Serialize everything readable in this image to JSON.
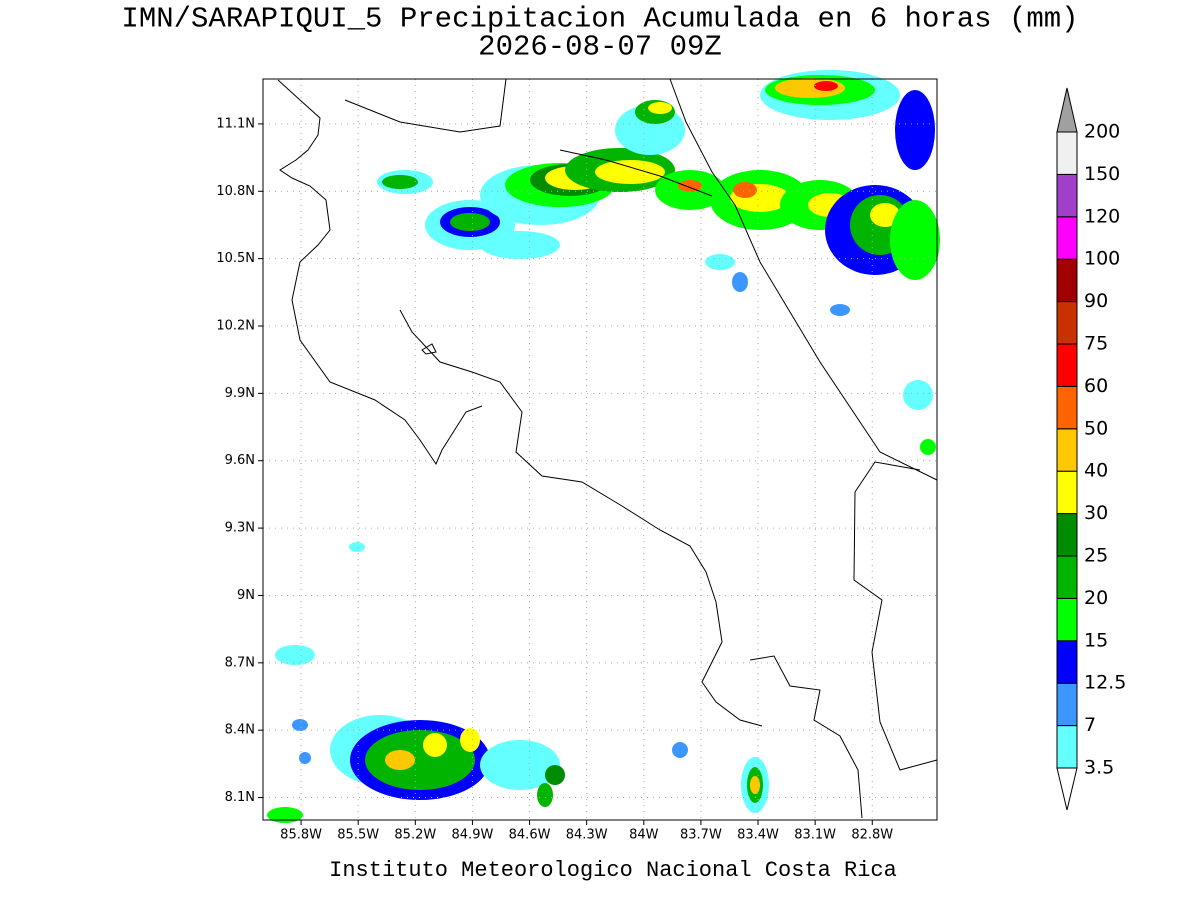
{
  "title": "IMN/SARAPIQUI_5 Precipitacion Acumulada en 6 horas (mm)",
  "subtitle": "2026-08-07 09Z",
  "footer": "Instituto Meteorologico Nacional Costa Rica",
  "map": {
    "xlim": [
      -86.0,
      -82.46
    ],
    "ylim": [
      8.0,
      11.3
    ],
    "xticks": [
      {
        "value": -85.8,
        "label": "85.8W"
      },
      {
        "value": -85.5,
        "label": "85.5W"
      },
      {
        "value": -85.2,
        "label": "85.2W"
      },
      {
        "value": -84.9,
        "label": "84.9W"
      },
      {
        "value": -84.6,
        "label": "84.6W"
      },
      {
        "value": -84.3,
        "label": "84.3W"
      },
      {
        "value": -84.0,
        "label": "84W"
      },
      {
        "value": -83.7,
        "label": "83.7W"
      },
      {
        "value": -83.4,
        "label": "83.4W"
      },
      {
        "value": -83.1,
        "label": "83.1W"
      },
      {
        "value": -82.8,
        "label": "82.8W"
      }
    ],
    "yticks": [
      {
        "value": 8.1,
        "label": "8.1N"
      },
      {
        "value": 8.4,
        "label": "8.4N"
      },
      {
        "value": 8.7,
        "label": "8.7N"
      },
      {
        "value": 9.0,
        "label": "9N"
      },
      {
        "value": 9.3,
        "label": "9.3N"
      },
      {
        "value": 9.6,
        "label": "9.6N"
      },
      {
        "value": 9.9,
        "label": "9.9N"
      },
      {
        "value": 10.2,
        "label": "10.2N"
      },
      {
        "value": 10.5,
        "label": "10.5N"
      },
      {
        "value": 10.8,
        "label": "10.8N"
      },
      {
        "value": 11.1,
        "label": "11.1N"
      }
    ],
    "grid": true
  },
  "colorbar": {
    "levels": [
      3.5,
      7,
      12.5,
      15,
      20,
      25,
      30,
      40,
      50,
      60,
      75,
      90,
      100,
      120,
      150,
      200
    ],
    "colors": [
      "#64ffff",
      "#3c96ff",
      "#0000ff",
      "#00ff00",
      "#00b400",
      "#008c00",
      "#ffff00",
      "#ffc800",
      "#ff6400",
      "#ff0000",
      "#c83200",
      "#a00000",
      "#ff00ff",
      "#a040c8",
      "#f0f0f0"
    ],
    "under_color": "#ffffff",
    "over_color": "#a0a0a0"
  }
}
